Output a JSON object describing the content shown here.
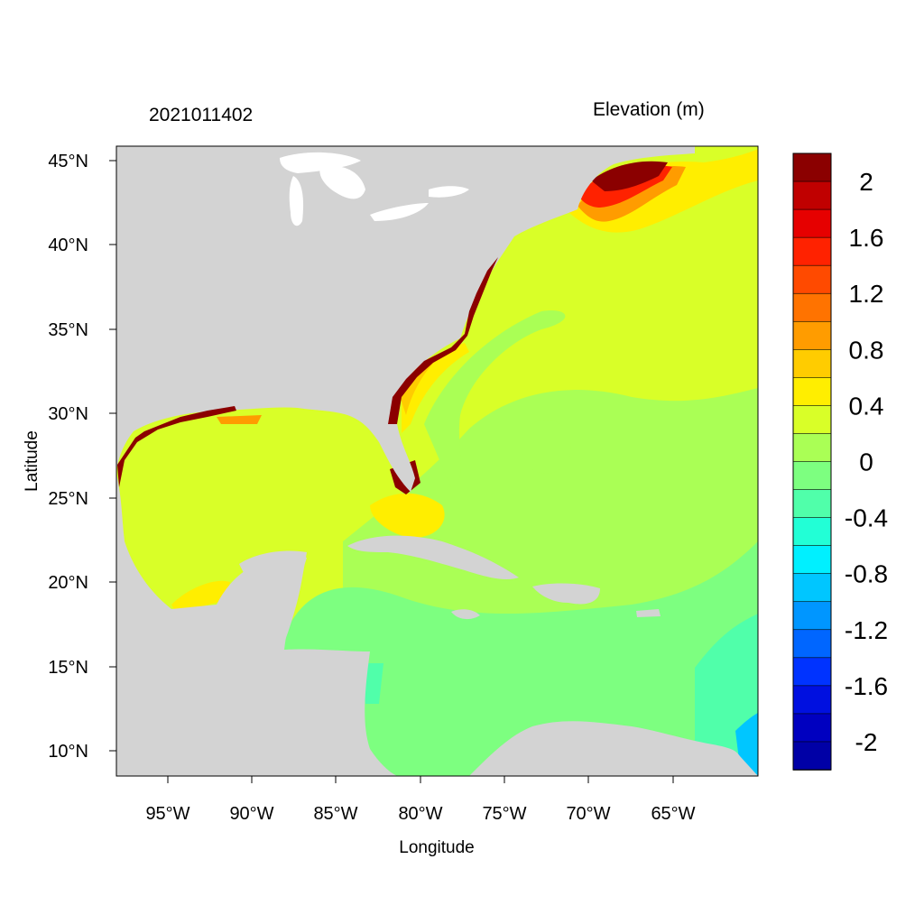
{
  "header": {
    "date_label": "2021011402",
    "variable_label": "Elevation (m)"
  },
  "axes": {
    "xlabel": "Longitude",
    "ylabel": "Latitude",
    "x_ticks": [
      "95°W",
      "90°W",
      "85°W",
      "80°W",
      "75°W",
      "70°W",
      "65°W"
    ],
    "y_ticks": [
      "45°N",
      "40°N",
      "35°N",
      "30°N",
      "25°N",
      "20°N",
      "15°N",
      "10°N"
    ]
  },
  "colorbar": {
    "labels": [
      "2",
      "1.6",
      "1.2",
      "0.8",
      "0.4",
      "0",
      "-0.4",
      "-0.8",
      "-1.2",
      "-1.6",
      "-2"
    ],
    "colors_top_to_bottom": [
      "#8b0000",
      "#c00000",
      "#e60000",
      "#ff2200",
      "#ff4a00",
      "#ff7300",
      "#ff9c00",
      "#ffcc00",
      "#ffee00",
      "#d9ff28",
      "#aaff55",
      "#7dff80",
      "#50ffaa",
      "#22ffd6",
      "#00f0ff",
      "#00c6ff",
      "#0096ff",
      "#0066ff",
      "#0033ff",
      "#0010e0",
      "#0000c0",
      "#0000a6"
    ]
  },
  "colors": {
    "land": "#d3d3d3",
    "lakes": "#ffffff",
    "ocean_base": "#d9ff28",
    "atlantic_zero": "#aaff55",
    "caribbean_neg": "#7dff80",
    "surge_max": "#8b0000"
  }
}
